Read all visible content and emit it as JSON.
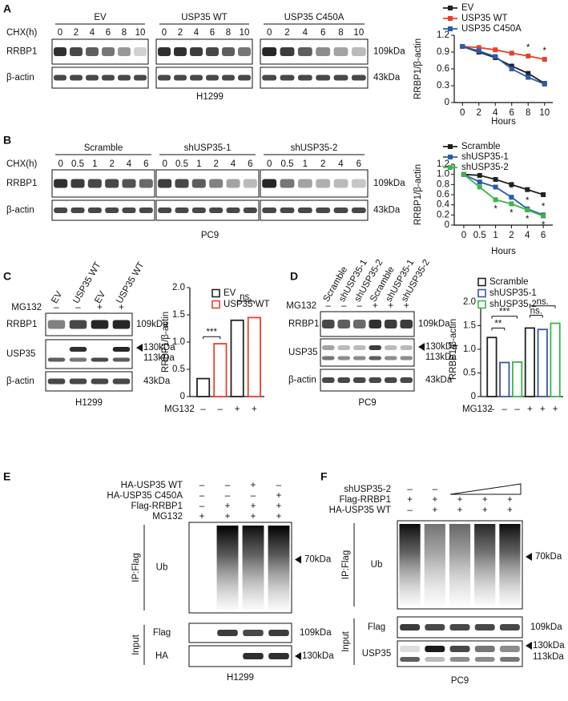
{
  "panel_labels": [
    "A",
    "B",
    "C",
    "D",
    "E",
    "F"
  ],
  "blot_a": {
    "groups": [
      "EV",
      "USP35 WT",
      "USP35 C450A"
    ],
    "time_label": "CHX(h)",
    "time_points": [
      "0",
      "2",
      "4",
      "6",
      "8",
      "10"
    ],
    "rows": [
      "RRBP1",
      "β-actin"
    ],
    "sizes": [
      "109kDa",
      "43kDa"
    ],
    "cell_line": "H1299"
  },
  "blot_b": {
    "groups": [
      "Scramble",
      "shUSP35-1",
      "shUSP35-2"
    ],
    "time_label": "CHX(h)",
    "time_points": [
      "0",
      "0.5",
      "1",
      "2",
      "4",
      "6"
    ],
    "rows": [
      "RRBP1",
      "β-actin"
    ],
    "sizes": [
      "109kDa",
      "43kDa"
    ],
    "cell_line": "PC9"
  },
  "blot_c": {
    "lanes": [
      "EV",
      "USP35 WT",
      "EV",
      "USP35 WT"
    ],
    "treatment": "MG132",
    "signs": [
      "–",
      "–",
      "+",
      "+"
    ],
    "rows": [
      "RRBP1",
      "USP35",
      "β-actin"
    ],
    "sizes": [
      "109kDa",
      "130kDa",
      "113kDa",
      "43kDa"
    ],
    "cell_line": "H1299"
  },
  "blot_d": {
    "lanes": [
      "Scramble",
      "shUSP35-1",
      "shUSP35-2",
      "Scramble",
      "shUSP35-1",
      "shUSP35-2"
    ],
    "treatment": "MG132",
    "signs": [
      "–",
      "–",
      "–",
      "+",
      "+",
      "+"
    ],
    "rows": [
      "RRBP1",
      "USP35",
      "β-actin"
    ],
    "sizes": [
      "109kDa",
      "130kDa",
      "113kDa",
      "43kDa"
    ],
    "cell_line": "PC9"
  },
  "blot_e": {
    "conditions": [
      {
        "name": "HA-USP35 WT",
        "signs": [
          "–",
          "–",
          "+",
          "–"
        ]
      },
      {
        "name": "HA-USP35 C450A",
        "signs": [
          "–",
          "–",
          "–",
          "+"
        ]
      },
      {
        "name": "Flag-RRBP1",
        "signs": [
          "–",
          "+",
          "+",
          "+"
        ]
      },
      {
        "name": "MG132",
        "signs": [
          "+",
          "+",
          "+",
          "+"
        ]
      }
    ],
    "ip_label": "IP:Flag",
    "ip_rows": [
      "Ub"
    ],
    "input_label": "Input",
    "input_rows": [
      "Flag",
      "HA"
    ],
    "sizes": [
      "70kDa",
      "109kDa",
      "130kDa"
    ],
    "cell_line": "H1299"
  },
  "blot_f": {
    "conditions": [
      {
        "name": "shUSP35-2",
        "signs": [
          "–",
          "–"
        ]
      },
      {
        "name": "Flag-RRBP1",
        "signs": [
          "+",
          "+",
          "+",
          "+",
          "+"
        ]
      },
      {
        "name": "HA-USP35 WT",
        "signs": [
          "–",
          "+",
          "+",
          "+",
          "+"
        ]
      }
    ],
    "ip_label": "IP:Flag",
    "ip_rows": [
      "Ub"
    ],
    "input_label": "Input",
    "input_rows": [
      "Flag",
      "USP35"
    ],
    "sizes": [
      "70kDa",
      "109kDa",
      "130kDa",
      "113kDa"
    ],
    "cell_line": "PC9"
  },
  "chart_data": [
    {
      "type": "line",
      "ylabel": "RRBP1/β-actin",
      "xlabel": "Hours",
      "x": [
        0,
        2,
        4,
        6,
        8,
        10
      ],
      "xlim": [
        -1,
        11
      ],
      "xticks": [
        0,
        2,
        4,
        6,
        8,
        10
      ],
      "ylim": [
        0,
        1.2
      ],
      "yticks": [
        0,
        0.3,
        0.6,
        0.9,
        1.2
      ],
      "series": [
        {
          "name": "EV",
          "color": "#222222",
          "values": [
            1.0,
            0.9,
            0.8,
            0.65,
            0.52,
            0.34
          ]
        },
        {
          "name": "USP35 WT",
          "color": "#e8402a",
          "values": [
            1.0,
            0.98,
            0.94,
            0.88,
            0.83,
            0.77
          ]
        },
        {
          "name": "USP35 C450A",
          "color": "#2a5caa",
          "values": [
            1.0,
            0.92,
            0.82,
            0.6,
            0.45,
            0.33
          ]
        }
      ],
      "annotations": [
        "*",
        "*"
      ]
    },
    {
      "type": "line",
      "ylabel": "RRBP1/β-actin",
      "xlabel": "Hours",
      "categories": [
        "0",
        "0.5",
        "1",
        "2",
        "4",
        "6"
      ],
      "ylim": [
        0,
        1.2
      ],
      "yticks": [
        0,
        0.2,
        0.4,
        0.6,
        0.8,
        {
          "value": 1,
          "label": "1.0"
        },
        1.2
      ],
      "series": [
        {
          "name": "Scramble",
          "color": "#222222",
          "values": [
            1.0,
            0.98,
            0.9,
            0.8,
            0.7,
            0.6
          ]
        },
        {
          "name": "shUSP35-1",
          "color": "#2a5caa",
          "values": [
            1.0,
            0.85,
            0.75,
            0.55,
            0.32,
            0.2
          ]
        },
        {
          "name": "shUSP35-2",
          "color": "#3cb44b",
          "values": [
            1.0,
            0.75,
            0.5,
            0.42,
            0.3,
            0.18
          ]
        }
      ],
      "annotations": [
        "*",
        "*",
        "*",
        "*",
        "*",
        "*",
        "*"
      ]
    },
    {
      "type": "bar",
      "ylabel": "RRBP1/β-actin",
      "xlabel": "MG132",
      "categories": [
        "–",
        "+"
      ],
      "ylim": [
        0,
        2
      ],
      "yticks": [
        0,
        0.5,
        {
          "value": 1,
          "label": "1.0"
        },
        1.5,
        {
          "value": 2,
          "label": "2.0"
        }
      ],
      "series": [
        {
          "name": "EV",
          "color": "#222222",
          "values": [
            0.33,
            1.4
          ]
        },
        {
          "name": "USP35 WT",
          "color": "#e8402a",
          "values": [
            0.97,
            1.45
          ]
        }
      ],
      "annotations": [
        "***",
        "ns."
      ]
    },
    {
      "type": "bar",
      "ylabel": "RRBP1/β-actin",
      "xlabel": "MG132",
      "categories": [
        "–",
        "+"
      ],
      "ylim": [
        0,
        2
      ],
      "yticks": [
        0,
        0.5,
        {
          "value": 1,
          "label": "1.0"
        },
        1.5,
        {
          "value": 2,
          "label": "2.0"
        }
      ],
      "series": [
        {
          "name": "Scramble",
          "color": "#222222",
          "values": [
            1.25,
            1.45
          ]
        },
        {
          "name": "shUSP35-1",
          "color": "#3a56a8",
          "values": [
            0.72,
            1.42
          ]
        },
        {
          "name": "shUSP35-2",
          "color": "#3cb44b",
          "values": [
            0.73,
            1.55
          ]
        }
      ],
      "annotations": [
        "**",
        "***",
        "ns.",
        "ns."
      ]
    }
  ]
}
